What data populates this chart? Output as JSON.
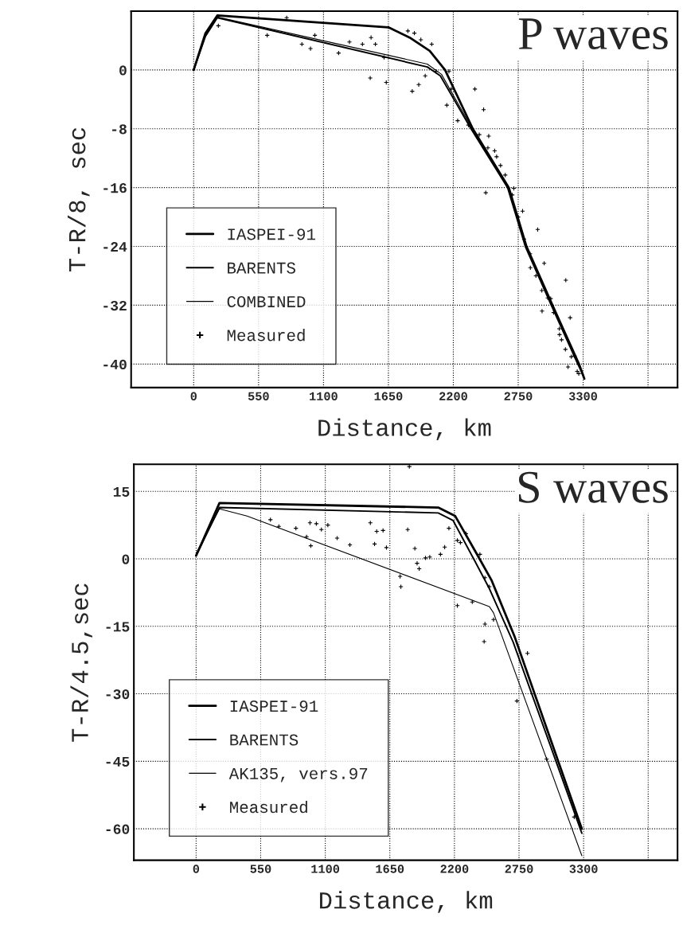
{
  "chart_data": [
    {
      "type": "line",
      "title": "P waves",
      "xlabel": "Distance, km",
      "ylabel": "T-R/8, sec",
      "xlim": [
        -530,
        4100
      ],
      "ylim": [
        -43.2,
        8
      ],
      "xticks": [
        0,
        550,
        1100,
        1650,
        2200,
        2750,
        3300,
        {
          "value": 3850,
          "label": null
        }
      ],
      "yticks": [
        0,
        -8,
        -16,
        -24,
        -32,
        -40
      ],
      "grid": true,
      "legend": "bottom left",
      "series": [
        {
          "name": "IASPEI-91",
          "color": "#000000",
          "x": [
            0,
            100,
            200,
            1650,
            1830,
            2000,
            2130,
            2365,
            2670,
            2820,
            3040,
            3265,
            3310
          ],
          "values": [
            0,
            5,
            7.4,
            5.8,
            4.4,
            2.6,
            0,
            -8,
            -16,
            -24,
            -32,
            -40,
            -42
          ]
        },
        {
          "name": "BARENTS",
          "color": "#000000",
          "x": [
            0,
            100,
            200,
            1980,
            2090,
            2350,
            2660,
            2810,
            3030,
            3255,
            3300
          ],
          "values": [
            0,
            4.6,
            7.1,
            0.4,
            -0.8,
            -8,
            -16,
            -24,
            -32,
            -40,
            -41.5
          ]
        },
        {
          "name": "COMBINED",
          "color": "#000000",
          "x": [
            0,
            100,
            200,
            1980,
            2100,
            2360,
            2665,
            2815,
            3035,
            3260,
            3305
          ],
          "values": [
            0,
            4.8,
            7.2,
            0.8,
            -0.6,
            -8,
            -16,
            -24,
            -32,
            -40,
            -41.8
          ]
        },
        {
          "name": "Measured",
          "type": "scatter",
          "color": "#000000",
          "marker": "cross",
          "x": [
            209,
            623,
            788,
            917,
            990,
            1027,
            1228,
            1320,
            1430,
            1503,
            1540,
            1496,
            1632,
            1613,
            1815,
            1870,
            1925,
            2017,
            1852,
            1907,
            1962,
            2053,
            2163,
            2182,
            2145,
            2237,
            2383,
            2457,
            2328,
            2420,
            2493,
            2567,
            2475,
            2640,
            2713,
            2915,
            2787,
            2853,
            3153,
            2970,
            3025,
            3190,
            3117,
            3172,
            3227,
            3263,
            2952,
            3098,
            2500,
            2550,
            2600,
            2700,
            2750,
            2800,
            2850,
            2900,
            2950,
            3000,
            3050,
            3100,
            3150,
            3200,
            3250
          ],
          "values": [
            6.0,
            4.7,
            7.1,
            3.5,
            2.9,
            4.7,
            2.3,
            3.8,
            3.5,
            4.4,
            3.5,
            -1.1,
            -1.7,
            1.7,
            5.3,
            5.0,
            4.1,
            3.5,
            -2.9,
            -2.0,
            -0.8,
            -0.2,
            -0.2,
            -2.6,
            -4.8,
            -6.9,
            -2.6,
            -5.4,
            -7.5,
            -8.8,
            -10.6,
            -11.8,
            -16.7,
            -14.3,
            -16.1,
            -21.7,
            -19.2,
            -26.9,
            -28.6,
            -26.3,
            -31.1,
            -33.7,
            -36.7,
            -40.4,
            -38.9,
            -41.3,
            -32.8,
            -35.2,
            -9,
            -11,
            -13,
            -17,
            -20,
            -23,
            -25,
            -28,
            -30,
            -31,
            -33,
            -36,
            -38,
            -39,
            -41
          ]
        }
      ]
    },
    {
      "type": "line",
      "title": "S waves",
      "xlabel": "Distance, km",
      "ylabel": "T-R/4.5,sec",
      "xlim": [
        -530,
        4100
      ],
      "ylim": [
        -67,
        21
      ],
      "xticks": [
        0,
        550,
        1100,
        1650,
        2200,
        2750,
        3300,
        {
          "value": 3850,
          "label": null
        }
      ],
      "yticks": [
        15,
        0,
        -15,
        -30,
        -45,
        -60
      ],
      "grid": true,
      "legend": "bottom left",
      "series": [
        {
          "name": "IASPEI-91",
          "color": "#000000",
          "x": [
            0,
            199,
            2062,
            2207,
            2388,
            2515,
            2714,
            3285
          ],
          "values": [
            0.7,
            12.4,
            11.4,
            9.5,
            1.2,
            -4.7,
            -17.4,
            -60
          ]
        },
        {
          "name": "BARENTS",
          "color": "#000000",
          "x": [
            0,
            199,
            2062,
            2189,
            2370,
            2497,
            2700,
            3285
          ],
          "values": [
            0.7,
            11.4,
            10.2,
            8.5,
            -0.3,
            -6.6,
            -18.5,
            -61
          ]
        },
        {
          "name": "AK135, vers.97",
          "color": "#000000",
          "x": [
            0,
            199,
            434,
            2497,
            2533,
            3285
          ],
          "values": [
            1.2,
            11.1,
            9.5,
            -10.6,
            -12,
            -66
          ]
        },
        {
          "name": "Measured",
          "type": "scatter",
          "color": "#000000",
          "marker": "cross",
          "x": [
            633,
            705,
            850,
            941,
            970,
            977,
            1024,
            1067,
            1122,
            1201,
            1310,
            1484,
            1538,
            1520,
            1592,
            1621,
            1737,
            1744,
            1816,
            1802,
            1863,
            1882,
            1900,
            1954,
            1990,
            2081,
            2117,
            2153,
            2225,
            2251,
            2298,
            2225,
            2352,
            2417,
            2460,
            2497,
            2460,
            2453,
            2533,
            2822,
            2732,
            2985,
            3220
          ],
          "values": [
            8.7,
            7.2,
            6.8,
            4.9,
            8.0,
            2.9,
            7.8,
            6.5,
            7.5,
            4.6,
            3.1,
            8.0,
            6.1,
            3.3,
            6.3,
            2.5,
            -3.9,
            -6.2,
            20.5,
            6.5,
            2.3,
            -1.0,
            -2.2,
            0.2,
            0.4,
            1.0,
            2.6,
            6.8,
            4.1,
            3.6,
            5.6,
            -10.4,
            -9.6,
            1.0,
            -4.2,
            -6.2,
            -14.5,
            -18.4,
            -13.5,
            -21.0,
            -31.6,
            -44.5,
            -57.4
          ]
        }
      ]
    }
  ]
}
